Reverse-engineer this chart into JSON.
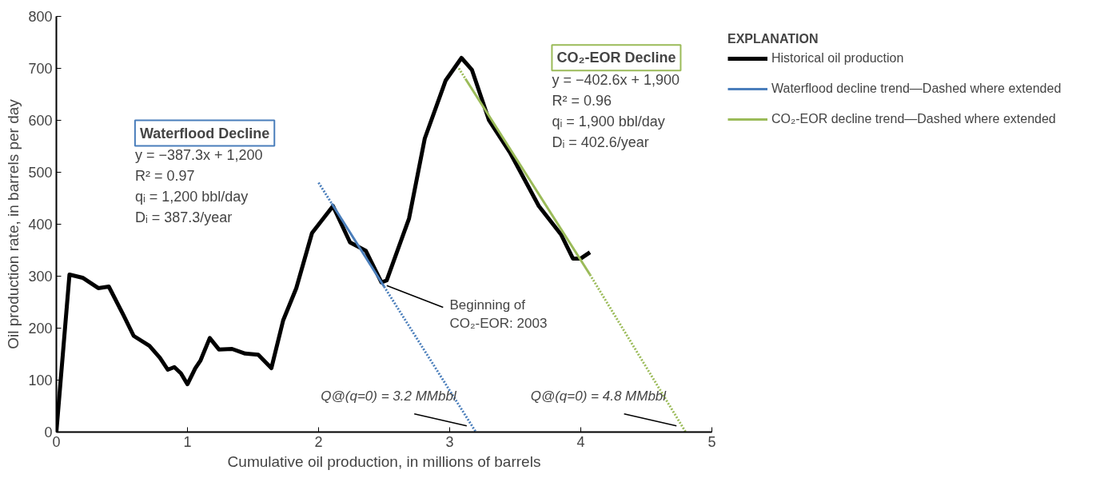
{
  "chart_data": {
    "type": "line",
    "xlabel": "Cumulative oil production, in millions of barrels",
    "ylabel": "Oil production rate, in barrels per day",
    "legend_title": "EXPLANATION",
    "xlim": [
      0,
      5
    ],
    "ylim": [
      0,
      800
    ],
    "xticks": [
      0,
      1,
      2,
      3,
      4,
      5
    ],
    "yticks": [
      0,
      100,
      200,
      300,
      400,
      500,
      600,
      700,
      800
    ],
    "grid": false,
    "legend": "right",
    "marker": "none",
    "series": [
      {
        "name": "Historical oil production",
        "color": "#000000",
        "line_style": "solid",
        "x": [
          0,
          0.1,
          0.2,
          0.32,
          0.4,
          0.51,
          0.59,
          0.71,
          0.79,
          0.85,
          0.9,
          0.95,
          1.0,
          1.06,
          1.1,
          1.17,
          1.24,
          1.34,
          1.44,
          1.54,
          1.64,
          1.73,
          1.83,
          1.95,
          2.11,
          2.24,
          2.36,
          2.48,
          2.52,
          2.69,
          2.81,
          2.97,
          3.09,
          3.17,
          3.3,
          3.46,
          3.68,
          3.85,
          3.94,
          4.0,
          4.07
        ],
        "values": [
          0,
          303,
          297,
          277,
          280,
          226,
          185,
          166,
          143,
          120,
          125,
          113,
          92,
          123,
          138,
          181,
          159,
          160,
          151,
          149,
          123,
          215,
          277,
          383,
          435,
          365,
          349,
          288,
          292,
          411,
          565,
          677,
          720,
          697,
          600,
          538,
          435,
          380,
          334,
          334,
          346
        ]
      },
      {
        "name": "Waterflood decline trend—Dashed where extended",
        "color": "#4a7ebb",
        "line_style": "solid",
        "x": [
          2.1,
          2.5
        ],
        "values": [
          440,
          280
        ]
      },
      {
        "color": "#4a7ebb",
        "line_style": "dotted",
        "x": [
          2.0,
          2.1
        ],
        "values": [
          480,
          440
        ]
      },
      {
        "color": "#4a7ebb",
        "line_style": "dotted",
        "x": [
          2.5,
          3.2
        ],
        "values": [
          280,
          0
        ]
      },
      {
        "name": "CO₂-EOR decline trend—Dashed where extended",
        "color": "#9bbb59",
        "line_style": "solid",
        "x": [
          3.12,
          4.07
        ],
        "values": [
          680,
          303
        ]
      },
      {
        "color": "#9bbb59",
        "line_style": "dotted",
        "x": [
          3.07,
          3.12
        ],
        "values": [
          700,
          680
        ]
      },
      {
        "color": "#9bbb59",
        "line_style": "dotted",
        "x": [
          4.07,
          4.8
        ],
        "values": [
          303,
          0
        ]
      }
    ],
    "annotations": [
      "Waterflood Decline",
      "y = −387.3x + 1,200\nR² = 0.97\nqᵢ = 1,200 bbl/day\nDᵢ = 387.3/year",
      "CO₂-EOR Decline",
      "y = −402.6x + 1,900\nR² = 0.96\nqᵢ = 1,900 bbl/day\nDᵢ = 402.6/year",
      {
        "text": "Beginning of\nCO₂-EOR: 2003",
        "x": 2.5,
        "y": 285
      },
      {
        "text": "Q@(q=0) = 3.2 MMbbl",
        "x": 3.2,
        "y": 0
      },
      {
        "text": "Q@(q=0) = 4.8 MMbbl",
        "x": 4.8,
        "y": 0
      }
    ]
  }
}
